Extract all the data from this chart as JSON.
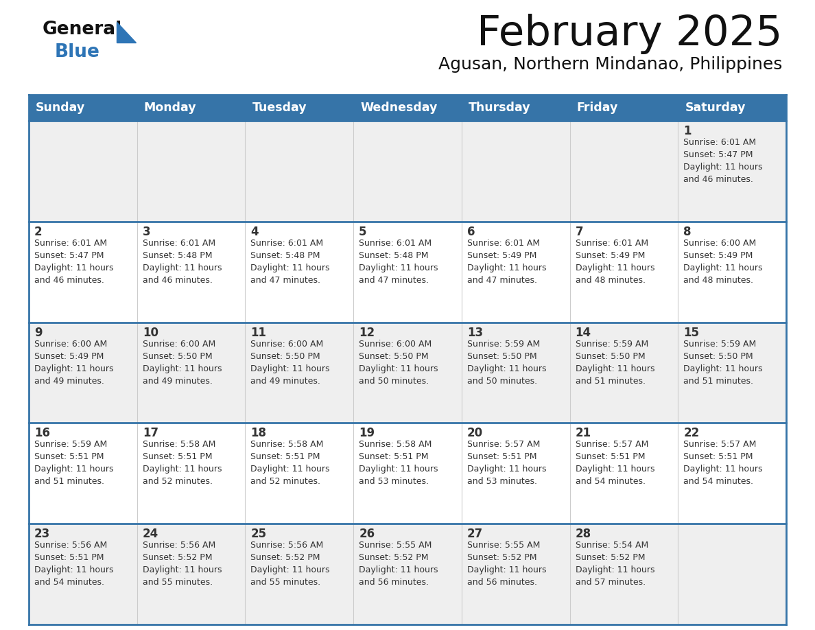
{
  "title": "February 2025",
  "subtitle": "Agusan, Northern Mindanao, Philippines",
  "header_color": "#3674A8",
  "header_text_color": "#FFFFFF",
  "days_of_week": [
    "Sunday",
    "Monday",
    "Tuesday",
    "Wednesday",
    "Thursday",
    "Friday",
    "Saturday"
  ],
  "background_color": "#FFFFFF",
  "cell_bg_light": "#EFEFEF",
  "cell_bg_white": "#FFFFFF",
  "separator_color": "#3674A8",
  "text_color": "#333333",
  "logo_triangle_color": "#2E75B6",
  "calendar_data": [
    [
      {
        "day": "",
        "info": ""
      },
      {
        "day": "",
        "info": ""
      },
      {
        "day": "",
        "info": ""
      },
      {
        "day": "",
        "info": ""
      },
      {
        "day": "",
        "info": ""
      },
      {
        "day": "",
        "info": ""
      },
      {
        "day": "1",
        "info": "Sunrise: 6:01 AM\nSunset: 5:47 PM\nDaylight: 11 hours\nand 46 minutes."
      }
    ],
    [
      {
        "day": "2",
        "info": "Sunrise: 6:01 AM\nSunset: 5:47 PM\nDaylight: 11 hours\nand 46 minutes."
      },
      {
        "day": "3",
        "info": "Sunrise: 6:01 AM\nSunset: 5:48 PM\nDaylight: 11 hours\nand 46 minutes."
      },
      {
        "day": "4",
        "info": "Sunrise: 6:01 AM\nSunset: 5:48 PM\nDaylight: 11 hours\nand 47 minutes."
      },
      {
        "day": "5",
        "info": "Sunrise: 6:01 AM\nSunset: 5:48 PM\nDaylight: 11 hours\nand 47 minutes."
      },
      {
        "day": "6",
        "info": "Sunrise: 6:01 AM\nSunset: 5:49 PM\nDaylight: 11 hours\nand 47 minutes."
      },
      {
        "day": "7",
        "info": "Sunrise: 6:01 AM\nSunset: 5:49 PM\nDaylight: 11 hours\nand 48 minutes."
      },
      {
        "day": "8",
        "info": "Sunrise: 6:00 AM\nSunset: 5:49 PM\nDaylight: 11 hours\nand 48 minutes."
      }
    ],
    [
      {
        "day": "9",
        "info": "Sunrise: 6:00 AM\nSunset: 5:49 PM\nDaylight: 11 hours\nand 49 minutes."
      },
      {
        "day": "10",
        "info": "Sunrise: 6:00 AM\nSunset: 5:50 PM\nDaylight: 11 hours\nand 49 minutes."
      },
      {
        "day": "11",
        "info": "Sunrise: 6:00 AM\nSunset: 5:50 PM\nDaylight: 11 hours\nand 49 minutes."
      },
      {
        "day": "12",
        "info": "Sunrise: 6:00 AM\nSunset: 5:50 PM\nDaylight: 11 hours\nand 50 minutes."
      },
      {
        "day": "13",
        "info": "Sunrise: 5:59 AM\nSunset: 5:50 PM\nDaylight: 11 hours\nand 50 minutes."
      },
      {
        "day": "14",
        "info": "Sunrise: 5:59 AM\nSunset: 5:50 PM\nDaylight: 11 hours\nand 51 minutes."
      },
      {
        "day": "15",
        "info": "Sunrise: 5:59 AM\nSunset: 5:50 PM\nDaylight: 11 hours\nand 51 minutes."
      }
    ],
    [
      {
        "day": "16",
        "info": "Sunrise: 5:59 AM\nSunset: 5:51 PM\nDaylight: 11 hours\nand 51 minutes."
      },
      {
        "day": "17",
        "info": "Sunrise: 5:58 AM\nSunset: 5:51 PM\nDaylight: 11 hours\nand 52 minutes."
      },
      {
        "day": "18",
        "info": "Sunrise: 5:58 AM\nSunset: 5:51 PM\nDaylight: 11 hours\nand 52 minutes."
      },
      {
        "day": "19",
        "info": "Sunrise: 5:58 AM\nSunset: 5:51 PM\nDaylight: 11 hours\nand 53 minutes."
      },
      {
        "day": "20",
        "info": "Sunrise: 5:57 AM\nSunset: 5:51 PM\nDaylight: 11 hours\nand 53 minutes."
      },
      {
        "day": "21",
        "info": "Sunrise: 5:57 AM\nSunset: 5:51 PM\nDaylight: 11 hours\nand 54 minutes."
      },
      {
        "day": "22",
        "info": "Sunrise: 5:57 AM\nSunset: 5:51 PM\nDaylight: 11 hours\nand 54 minutes."
      }
    ],
    [
      {
        "day": "23",
        "info": "Sunrise: 5:56 AM\nSunset: 5:51 PM\nDaylight: 11 hours\nand 54 minutes."
      },
      {
        "day": "24",
        "info": "Sunrise: 5:56 AM\nSunset: 5:52 PM\nDaylight: 11 hours\nand 55 minutes."
      },
      {
        "day": "25",
        "info": "Sunrise: 5:56 AM\nSunset: 5:52 PM\nDaylight: 11 hours\nand 55 minutes."
      },
      {
        "day": "26",
        "info": "Sunrise: 5:55 AM\nSunset: 5:52 PM\nDaylight: 11 hours\nand 56 minutes."
      },
      {
        "day": "27",
        "info": "Sunrise: 5:55 AM\nSunset: 5:52 PM\nDaylight: 11 hours\nand 56 minutes."
      },
      {
        "day": "28",
        "info": "Sunrise: 5:54 AM\nSunset: 5:52 PM\nDaylight: 11 hours\nand 57 minutes."
      },
      {
        "day": "",
        "info": ""
      }
    ]
  ]
}
